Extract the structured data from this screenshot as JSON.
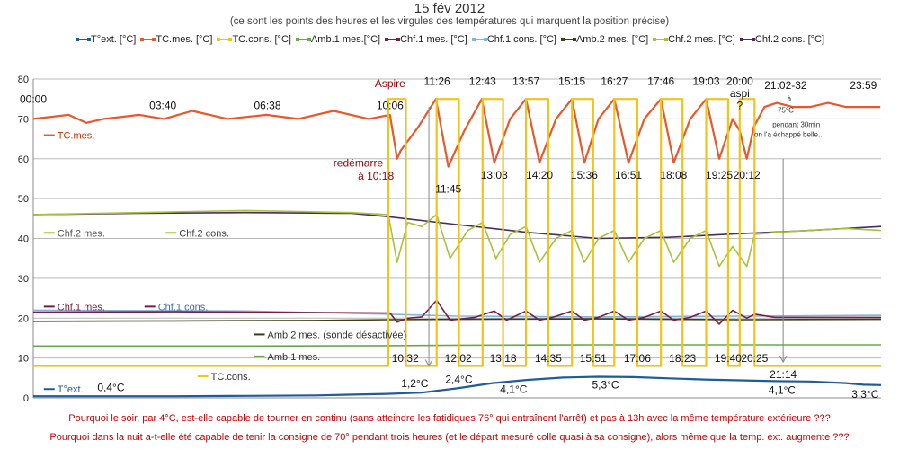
{
  "title": "15 fév 2012",
  "subtitle": "(ce sont les points des heures et les virgules des températures qui marquent la position précise)",
  "questions": [
    "Pourquoi le soir, par 4°C, est-elle capable de tourner en continu (sans atteindre les fatidiques 76° qui entraînent l'arrêt) et pas à 13h avec la même température extérieure ???",
    "Pourquoi dans la nuit a-t-elle été capable de tenir la consigne de 70° pendant trois heures (et le départ mesuré colle quasi à sa consigne), alors même que la temp. ext. augmente ???"
  ],
  "chart_data": {
    "type": "line",
    "ylim": [
      0,
      80
    ],
    "yticks": [
      "0",
      "10",
      "20",
      "30",
      "40",
      "50",
      "60",
      "70",
      "80"
    ],
    "xrange_hours": [
      0,
      24
    ],
    "grid": true,
    "legend_position": "top",
    "legend": [
      {
        "label": "T°ext. [°C]",
        "color": "#1f5c99"
      },
      {
        "label": "TC.mes. [°C]",
        "color": "#e8582c"
      },
      {
        "label": "TC.cons. [°C]",
        "color": "#f0c419"
      },
      {
        "label": "Amb.1 mes.[°C]",
        "color": "#6aa84f"
      },
      {
        "label": "Chf.1 mes. [°C]",
        "color": "#7a1f3d"
      },
      {
        "label": "Chf.1 cons. [°C]",
        "color": "#7fb3e6"
      },
      {
        "label": "Amb.2 mes. [°C]",
        "color": "#3d3d1a"
      },
      {
        "label": "Chf.2 mes. [°C]",
        "color": "#a6c23a"
      },
      {
        "label": "Chf.2 cons. [°C]",
        "color": "#4b2a5e"
      }
    ],
    "series": [
      {
        "name": "T°ext. [°C]",
        "color": "#1f5c99",
        "x": [
          0,
          2,
          4,
          6,
          8,
          10,
          11,
          12,
          13,
          14,
          15,
          16,
          17,
          18,
          19,
          20,
          21,
          22,
          23,
          23.5,
          24
        ],
        "y": [
          0.4,
          0.4,
          0.4,
          0.5,
          0.6,
          1.0,
          1.3,
          2.4,
          3.7,
          4.5,
          5.1,
          5.3,
          5.2,
          4.9,
          4.6,
          4.4,
          4.2,
          4.1,
          3.7,
          3.3,
          3.2
        ]
      },
      {
        "name": "TC.mes. [°C]",
        "color": "#e8582c",
        "x": [
          0,
          1,
          1.5,
          2,
          3,
          3.7,
          4.5,
          5.5,
          6.6,
          7.5,
          8.5,
          9.5,
          10.1,
          10.3,
          10.4,
          10.9,
          11.4,
          11.75,
          12.2,
          12.7,
          13.05,
          13.5,
          13.95,
          14.33,
          14.8,
          15.25,
          15.6,
          16.0,
          16.45,
          16.85,
          17.3,
          17.77,
          18.13,
          18.6,
          19.05,
          19.42,
          19.8,
          20.0,
          20.2,
          20.4,
          20.7,
          21.05,
          21.5,
          22,
          22.5,
          23,
          23.98
        ],
        "y": [
          70,
          71,
          69,
          70,
          71,
          70,
          72,
          70,
          71,
          70,
          72,
          70,
          71,
          60,
          62,
          68,
          75,
          58,
          67,
          75,
          59,
          70,
          75,
          59,
          70,
          75,
          59,
          70,
          75,
          59,
          70,
          75,
          59,
          70,
          75,
          60,
          70,
          67,
          60,
          68,
          73,
          74,
          73,
          73,
          74,
          73,
          73
        ]
      },
      {
        "name": "TC.cons. [°C]",
        "color": "#f0c419",
        "x": [
          0,
          10.05,
          10.05,
          10.55,
          10.55,
          11.42,
          11.42,
          12.05,
          12.05,
          12.72,
          12.72,
          13.3,
          13.3,
          13.95,
          13.95,
          14.58,
          14.58,
          15.25,
          15.25,
          15.85,
          15.85,
          16.45,
          16.45,
          17.1,
          17.1,
          17.77,
          17.77,
          18.38,
          18.38,
          19.05,
          19.05,
          19.67,
          19.67,
          20.0,
          20.0,
          20.42,
          20.42,
          21.23,
          21.23,
          24
        ],
        "y": [
          8,
          8,
          75,
          75,
          8,
          8,
          75,
          75,
          8,
          8,
          75,
          75,
          8,
          8,
          75,
          75,
          8,
          8,
          75,
          75,
          8,
          8,
          75,
          75,
          8,
          8,
          75,
          75,
          8,
          8,
          75,
          75,
          8,
          8,
          75,
          75,
          8,
          8,
          8,
          8
        ]
      },
      {
        "name": "Amb.1 mes.[°C]",
        "color": "#6aa84f",
        "x": [
          0,
          6,
          10,
          12,
          16,
          20,
          24
        ],
        "y": [
          13.0,
          13.0,
          13.1,
          13.2,
          13.3,
          13.3,
          13.3
        ]
      },
      {
        "name": "Chf.1 mes. [°C]",
        "color": "#7a1f3d",
        "x": [
          0,
          4,
          8,
          10.1,
          10.3,
          10.6,
          11.0,
          11.42,
          11.8,
          12.5,
          13.05,
          13.4,
          13.95,
          14.33,
          14.7,
          15.25,
          15.6,
          16.0,
          16.45,
          16.85,
          17.3,
          17.77,
          18.13,
          18.6,
          19.05,
          19.42,
          19.8,
          20.2,
          20.42,
          21,
          24
        ],
        "y": [
          21.5,
          21.6,
          21.4,
          21.3,
          19.0,
          20.0,
          20.3,
          24.5,
          19.5,
          20.2,
          21.8,
          19.5,
          21.8,
          19.5,
          20.2,
          21.8,
          19.5,
          20.2,
          21.8,
          19.5,
          20.2,
          21.8,
          19.5,
          20.2,
          21.8,
          18.5,
          22.0,
          20.0,
          21.0,
          20.2,
          20.2
        ]
      },
      {
        "name": "Chf.1 cons. [°C]",
        "color": "#7fb3e6",
        "x": [
          0,
          6,
          10,
          12,
          16,
          20,
          24
        ],
        "y": [
          22.0,
          21.8,
          21.0,
          20.5,
          20.3,
          20.5,
          20.7
        ]
      },
      {
        "name": "Amb.2 mes. [°C]",
        "color": "#3d3d1a",
        "x": [
          0,
          4,
          8,
          10,
          12,
          16,
          20,
          24
        ],
        "y": [
          19.2,
          19.3,
          19.4,
          19.6,
          19.7,
          19.8,
          19.6,
          19.7
        ]
      },
      {
        "name": "Chf.2 mes. [°C]",
        "color": "#a6c23a",
        "x": [
          0,
          3,
          6,
          9,
          10.05,
          10.3,
          10.6,
          11.0,
          11.42,
          11.8,
          12.3,
          12.72,
          13.1,
          13.5,
          13.95,
          14.33,
          14.8,
          15.25,
          15.6,
          16.0,
          16.45,
          16.85,
          17.3,
          17.77,
          18.13,
          18.6,
          19.05,
          19.42,
          19.8,
          20.2,
          20.42,
          21,
          22,
          23,
          24
        ],
        "y": [
          46,
          46.5,
          47,
          46.5,
          46,
          34,
          44,
          43,
          46,
          35,
          42,
          44,
          35,
          41,
          43,
          34,
          40,
          42,
          34,
          40,
          42,
          34,
          40,
          42,
          34,
          40,
          42,
          33,
          38,
          33,
          41,
          41.5,
          42,
          42.5,
          42
        ]
      },
      {
        "name": "Chf.2 cons. [°C]",
        "color": "#4b2a5e",
        "x": [
          0,
          3,
          6,
          9,
          10,
          12,
          14,
          16,
          18,
          20,
          22,
          24
        ],
        "y": [
          46.0,
          46.3,
          46.5,
          46.3,
          45.5,
          43.5,
          41.5,
          40.0,
          40.3,
          41.2,
          42.0,
          43.0
        ]
      }
    ],
    "inline_labels": [
      {
        "text": "TC.mes.",
        "color": "#cc3300"
      },
      {
        "text": "Chf.2 mes.",
        "color": "#555555"
      },
      {
        "text": "Chf.2 cons.",
        "color": "#444444"
      },
      {
        "text": "Chf.1 mes.",
        "color": "#7a1f3d"
      },
      {
        "text": "Chf.1 cons.",
        "color": "#3a6fa5"
      },
      {
        "text": "Amb.2 mes. (sonde désactivée)",
        "color": "#333333"
      },
      {
        "text": "Amb.1 mes.",
        "color": "#333333"
      },
      {
        "text": "TC.cons.",
        "color": "#333333"
      },
      {
        "text": "T°ext.",
        "color": "#1f5c99"
      }
    ],
    "annotations": [
      {
        "text": "00:00",
        "hour": 0.0,
        "y": 74,
        "color": "#111111"
      },
      {
        "text": "03:40",
        "hour": 3.67,
        "y": 72.5,
        "color": "#111111"
      },
      {
        "text": "06:38",
        "hour": 6.63,
        "y": 72.5,
        "color": "#111111"
      },
      {
        "text": "Aspire",
        "hour": 10.1,
        "y": 78,
        "color": "#990000"
      },
      {
        "text": "10:06",
        "hour": 10.1,
        "y": 72.5,
        "color": "#111111"
      },
      {
        "text": "redémarre",
        "hour": 9.2,
        "y": 58,
        "color": "#990000"
      },
      {
        "text": "à 10:18",
        "hour": 9.7,
        "y": 54.8,
        "color": "#990000"
      },
      {
        "text": "11:26",
        "hour": 11.43,
        "y": 78.5,
        "color": "#111111"
      },
      {
        "text": "12:43",
        "hour": 12.72,
        "y": 78.5,
        "color": "#111111"
      },
      {
        "text": "13:57",
        "hour": 13.95,
        "y": 78.5,
        "color": "#111111"
      },
      {
        "text": "15:15",
        "hour": 15.25,
        "y": 78.5,
        "color": "#111111"
      },
      {
        "text": "16:27",
        "hour": 16.45,
        "y": 78.5,
        "color": "#111111"
      },
      {
        "text": "17:46",
        "hour": 17.77,
        "y": 78.5,
        "color": "#111111"
      },
      {
        "text": "19:03",
        "hour": 19.05,
        "y": 78.5,
        "color": "#111111"
      },
      {
        "text": "20:00",
        "hour": 20.0,
        "y": 78.5,
        "color": "#111111"
      },
      {
        "text": "aspi",
        "hour": 20.0,
        "y": 75.5,
        "color": "#111111"
      },
      {
        "text": "?",
        "hour": 20.0,
        "y": 72.5,
        "color": "#111111"
      },
      {
        "text": "21:02-32",
        "hour": 21.3,
        "y": 77.5,
        "color": "#111111"
      },
      {
        "text": "23:59",
        "hour": 23.5,
        "y": 77.5,
        "color": "#111111"
      },
      {
        "text": "à",
        "hour": 21.4,
        "y": 74.5,
        "color": "#333333",
        "small": true
      },
      {
        "text": "75°C",
        "hour": 21.3,
        "y": 71.5,
        "color": "#333333",
        "small": true
      },
      {
        "text": "pendant 30min",
        "hour": 21.6,
        "y": 68.0,
        "color": "#333333",
        "small": true
      },
      {
        "text": "on l'a échappé belle...",
        "hour": 21.4,
        "y": 65.5,
        "color": "#333333",
        "small": true
      },
      {
        "text": "11:45",
        "hour": 11.75,
        "y": 51.5,
        "color": "#111111"
      },
      {
        "text": "13:03",
        "hour": 13.05,
        "y": 55.0,
        "color": "#111111"
      },
      {
        "text": "14:20",
        "hour": 14.33,
        "y": 55.0,
        "color": "#111111"
      },
      {
        "text": "15:36",
        "hour": 15.6,
        "y": 55.0,
        "color": "#111111"
      },
      {
        "text": "16:51",
        "hour": 16.85,
        "y": 55.0,
        "color": "#111111"
      },
      {
        "text": "18:08",
        "hour": 18.13,
        "y": 55.0,
        "color": "#111111"
      },
      {
        "text": "19:25",
        "hour": 19.42,
        "y": 55.0,
        "color": "#111111"
      },
      {
        "text": "20:12",
        "hour": 20.2,
        "y": 55.0,
        "color": "#111111"
      },
      {
        "text": "10:32",
        "hour": 10.53,
        "y": 9.0,
        "color": "#111111"
      },
      {
        "text": "12:02",
        "hour": 12.03,
        "y": 9.0,
        "color": "#111111"
      },
      {
        "text": "13:18",
        "hour": 13.3,
        "y": 9.0,
        "color": "#111111"
      },
      {
        "text": "14:35",
        "hour": 14.58,
        "y": 9.0,
        "color": "#111111"
      },
      {
        "text": "15:51",
        "hour": 15.85,
        "y": 9.0,
        "color": "#111111"
      },
      {
        "text": "17:06",
        "hour": 17.1,
        "y": 9.0,
        "color": "#111111"
      },
      {
        "text": "18:23",
        "hour": 18.38,
        "y": 9.0,
        "color": "#111111"
      },
      {
        "text": "19:40",
        "hour": 19.67,
        "y": 9.0,
        "color": "#111111"
      },
      {
        "text": "20:25",
        "hour": 20.42,
        "y": 9.0,
        "color": "#111111"
      },
      {
        "text": "21:14",
        "hour": 21.23,
        "y": 5.0,
        "color": "#111111"
      },
      {
        "text": "0,4°C",
        "hour": 2.2,
        "y": 1.7,
        "color": "#111111"
      },
      {
        "text": "1,2°C",
        "hour": 10.8,
        "y": 2.7,
        "color": "#111111"
      },
      {
        "text": "2,4°C",
        "hour": 12.05,
        "y": 3.7,
        "color": "#111111"
      },
      {
        "text": "4,1°C",
        "hour": 13.6,
        "y": 1.2,
        "color": "#111111"
      },
      {
        "text": "5,3°C",
        "hour": 16.2,
        "y": 2.4,
        "color": "#111111"
      },
      {
        "text": "4,1°C",
        "hour": 21.2,
        "y": 1.0,
        "color": "#111111"
      },
      {
        "text": "3,3°C",
        "hour": 23.55,
        "y": 0.0,
        "color": "#111111"
      }
    ],
    "arrows": [
      {
        "hour": 11.2,
        "y_from": 73,
        "y_to": 8
      },
      {
        "hour": 21.23,
        "y_from": 60,
        "y_to": 9
      }
    ]
  }
}
